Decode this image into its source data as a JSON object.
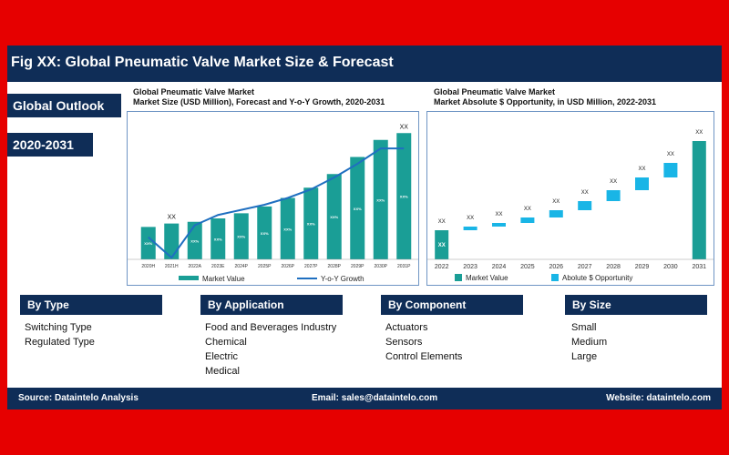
{
  "header": {
    "title": "Fig XX: Global Pneumatic Valve Market Size & Forecast"
  },
  "side": {
    "outlook": "Global Outlook",
    "period": "2020-2031"
  },
  "left_chart_title": {
    "line1": "Global Pneumatic Valve Market",
    "line2": "Market Size (USD Million), Forecast and Y-o-Y Growth, 2020-2031"
  },
  "right_chart_title": {
    "line1": "Global Pneumatic Valve Market",
    "line2": "Market Absolute $ Opportunity, in USD Million, 2022-2031"
  },
  "chart_data": [
    {
      "type": "bar",
      "categories": [
        "2020H",
        "2021H",
        "2022A",
        "2023E",
        "2024P",
        "2025P",
        "2026P",
        "2027P",
        "2028P",
        "2029P",
        "2030P",
        "2031P"
      ],
      "series": [
        {
          "name": "Market Value",
          "values": [
            38,
            42,
            44,
            48,
            54,
            62,
            72,
            84,
            100,
            120,
            140,
            148
          ],
          "labels": [
            "XX%",
            "",
            "XX%",
            "XX%",
            "XX%",
            "XX%",
            "XX%",
            "XX%",
            "XX%",
            "XX%",
            "XX%",
            "XX%"
          ]
        },
        {
          "name": "Y-o-Y Growth",
          "type": "line",
          "values": [
            26,
            2,
            40,
            52,
            58,
            64,
            72,
            82,
            96,
            112,
            130,
            130
          ]
        }
      ],
      "annotations": [
        {
          "category": "2021H",
          "text": "XX"
        },
        {
          "category": "2031P",
          "text": "XX"
        }
      ],
      "ylim": [
        0,
        160
      ],
      "colors": {
        "bar": "#1a9e96",
        "line": "#1f6fc0"
      },
      "legend": "bottom"
    },
    {
      "type": "bar",
      "categories": [
        "2022",
        "2023",
        "2024",
        "2025",
        "2026",
        "2027",
        "2028",
        "2029",
        "2030",
        "2031"
      ],
      "series": [
        {
          "name": "Market Value",
          "values": [
            32,
            null,
            null,
            null,
            null,
            null,
            null,
            null,
            null,
            130
          ]
        },
        {
          "name": "Abolute $ Opportunity",
          "values": [
            null,
            4,
            4,
            6,
            8,
            10,
            12,
            14,
            16,
            null
          ]
        }
      ],
      "value_labels": [
        "XX",
        "XX",
        "XX",
        "XX",
        "XX",
        "XX",
        "XX",
        "XX",
        "XX",
        "XX"
      ],
      "bar_inner_label": "XX",
      "ylim": [
        0,
        150
      ],
      "colors": {
        "market": "#1a9e96",
        "opportunity": "#19b5e6"
      },
      "legend": "bottom"
    }
  ],
  "segments": [
    {
      "header": "By Type",
      "items": [
        "Switching Type",
        "Regulated Type"
      ]
    },
    {
      "header": "By Application",
      "items": [
        "Food and Beverages Industry",
        "Chemical",
        "Electric",
        "Medical"
      ]
    },
    {
      "header": "By Component",
      "items": [
        "Actuators",
        "Sensors",
        "Control Elements"
      ]
    },
    {
      "header": "By Size",
      "items": [
        "Small",
        "Medium",
        "Large"
      ]
    }
  ],
  "footer": {
    "source": "Source:  Dataintelo  Analysis",
    "email": "Email: sales@dataintelo.com",
    "website": "Website: dataintelo.com"
  }
}
